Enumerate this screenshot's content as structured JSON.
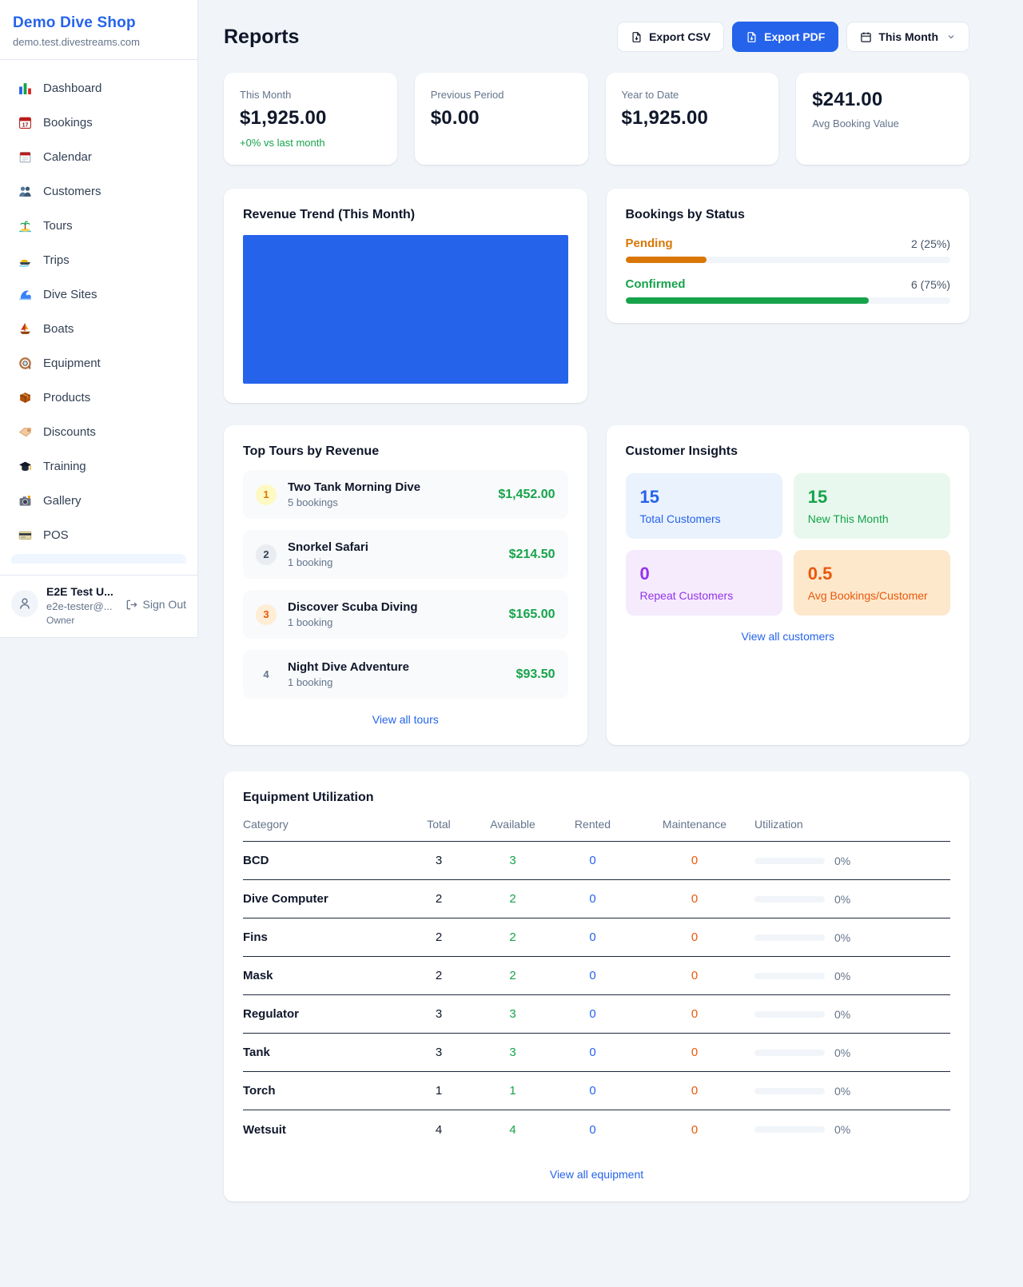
{
  "colors": {
    "accent": "#2563eb",
    "green": "#16a34a",
    "pending_orange": "#d97706",
    "maintenance_orange": "#ea580c",
    "purple": "#9333ea",
    "link_blue": "#2563eb"
  },
  "sidebar": {
    "shop_name": "Demo Dive Shop",
    "domain": "demo.test.divestreams.com",
    "items": [
      {
        "label": "Dashboard",
        "icon": "bar-chart-icon"
      },
      {
        "label": "Bookings",
        "icon": "calendar-date-icon"
      },
      {
        "label": "Calendar",
        "icon": "calendar-pad-icon"
      },
      {
        "label": "Customers",
        "icon": "users-icon"
      },
      {
        "label": "Tours",
        "icon": "island-icon"
      },
      {
        "label": "Trips",
        "icon": "motorboat-icon"
      },
      {
        "label": "Dive Sites",
        "icon": "wave-icon"
      },
      {
        "label": "Boats",
        "icon": "sailboat-icon"
      },
      {
        "label": "Equipment",
        "icon": "dive-mask-icon"
      },
      {
        "label": "Products",
        "icon": "package-icon"
      },
      {
        "label": "Discounts",
        "icon": "tag-icon"
      },
      {
        "label": "Training",
        "icon": "graduation-cap-icon"
      },
      {
        "label": "Gallery",
        "icon": "camera-icon"
      },
      {
        "label": "POS",
        "icon": "credit-card-icon"
      }
    ],
    "user": {
      "name": "E2E Test U...",
      "email": "e2e-tester@...",
      "role": "Owner",
      "sign_out": "Sign Out"
    }
  },
  "header": {
    "title": "Reports",
    "export_csv": "Export CSV",
    "export_pdf": "Export PDF",
    "period": "This Month"
  },
  "stats": [
    {
      "label": "This Month",
      "value": "$1,925.00",
      "delta": "+0% vs last month"
    },
    {
      "label": "Previous Period",
      "value": "$0.00"
    },
    {
      "label": "Year to Date",
      "value": "$1,925.00"
    },
    {
      "label": "Avg Booking Value",
      "value": "$241.00"
    }
  ],
  "revenue_trend": {
    "title": "Revenue Trend (This Month)"
  },
  "chart_data": {
    "type": "bar",
    "title": "Revenue Trend (This Month)",
    "categories": [
      "This Month"
    ],
    "values": [
      1925
    ],
    "bar_color": "#2563eb",
    "xlabel": "",
    "ylabel": "",
    "note_layout": "single bar fills entire plot area; no axes, ticks or gridlines visible"
  },
  "bookings_by_status": {
    "title": "Bookings by Status",
    "rows": [
      {
        "label": "Pending",
        "value": "2 (25%)",
        "percent": 25,
        "color": "#d97706"
      },
      {
        "label": "Confirmed",
        "value": "6 (75%)",
        "percent": 75,
        "color": "#16a34a"
      }
    ]
  },
  "top_tours": {
    "title": "Top Tours by Revenue",
    "link": "View all tours",
    "rows": [
      {
        "rank": "1",
        "name": "Two Tank Morning Dive",
        "bookings": "5 bookings",
        "revenue": "$1,452.00"
      },
      {
        "rank": "2",
        "name": "Snorkel Safari",
        "bookings": "1 booking",
        "revenue": "$214.50"
      },
      {
        "rank": "3",
        "name": "Discover Scuba Diving",
        "bookings": "1 booking",
        "revenue": "$165.00"
      },
      {
        "rank": "4",
        "name": "Night Dive Adventure",
        "bookings": "1 booking",
        "revenue": "$93.50"
      }
    ]
  },
  "customer_insights": {
    "title": "Customer Insights",
    "link": "View all customers",
    "tiles": [
      {
        "value": "15",
        "label": "Total Customers"
      },
      {
        "value": "15",
        "label": "New This Month"
      },
      {
        "value": "0",
        "label": "Repeat Customers"
      },
      {
        "value": "0.5",
        "label": "Avg Bookings/Customer"
      }
    ]
  },
  "equipment": {
    "title": "Equipment Utilization",
    "link": "View all equipment",
    "columns": [
      "Category",
      "Total",
      "Available",
      "Rented",
      "Maintenance",
      "Utilization"
    ],
    "rows": [
      {
        "category": "BCD",
        "total": "3",
        "available": "3",
        "rented": "0",
        "maintenance": "0",
        "utilization": "0%",
        "utilization_pct": 0
      },
      {
        "category": "Dive Computer",
        "total": "2",
        "available": "2",
        "rented": "0",
        "maintenance": "0",
        "utilization": "0%",
        "utilization_pct": 0
      },
      {
        "category": "Fins",
        "total": "2",
        "available": "2",
        "rented": "0",
        "maintenance": "0",
        "utilization": "0%",
        "utilization_pct": 0
      },
      {
        "category": "Mask",
        "total": "2",
        "available": "2",
        "rented": "0",
        "maintenance": "0",
        "utilization": "0%",
        "utilization_pct": 0
      },
      {
        "category": "Regulator",
        "total": "3",
        "available": "3",
        "rented": "0",
        "maintenance": "0",
        "utilization": "0%",
        "utilization_pct": 0
      },
      {
        "category": "Tank",
        "total": "3",
        "available": "3",
        "rented": "0",
        "maintenance": "0",
        "utilization": "0%",
        "utilization_pct": 0
      },
      {
        "category": "Torch",
        "total": "1",
        "available": "1",
        "rented": "0",
        "maintenance": "0",
        "utilization": "0%",
        "utilization_pct": 0
      },
      {
        "category": "Wetsuit",
        "total": "4",
        "available": "4",
        "rented": "0",
        "maintenance": "0",
        "utilization": "0%",
        "utilization_pct": 0
      }
    ]
  }
}
